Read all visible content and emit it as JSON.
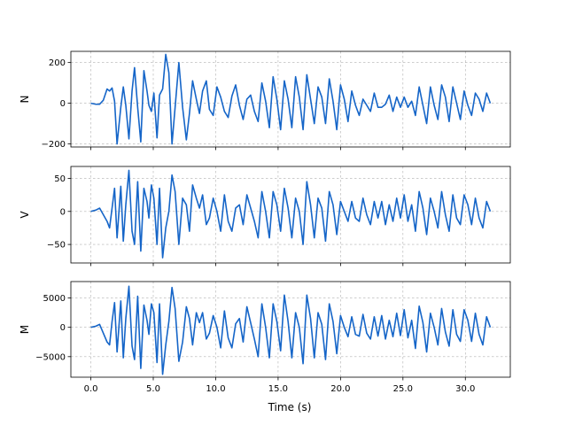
{
  "chart_data": {
    "type": "line",
    "xlabel": "Time (s)",
    "xlim": [
      -1.6,
      33.6
    ],
    "xticks": [
      0,
      5,
      10,
      15,
      20,
      25,
      30
    ],
    "xtick_labels": [
      "0.0",
      "5.0",
      "10.0",
      "15.0",
      "20.0",
      "25.0",
      "30.0"
    ],
    "grid": true,
    "line_color": "#1565c8",
    "panels": [
      {
        "name": "N",
        "ylabel": "N",
        "ylim": [
          -215,
          255
        ],
        "yticks": [
          -200,
          0,
          200
        ],
        "ytick_labels": [
          "−200",
          "0",
          "200"
        ],
        "series": {
          "x": [
            0,
            0.4,
            0.7,
            1.0,
            1.3,
            1.5,
            1.7,
            1.9,
            2.1,
            2.4,
            2.6,
            2.8,
            3.05,
            3.3,
            3.5,
            3.75,
            4.0,
            4.25,
            4.5,
            4.65,
            4.85,
            5.05,
            5.3,
            5.5,
            5.75,
            6.0,
            6.25,
            6.5,
            6.75,
            7.05,
            7.35,
            7.65,
            7.9,
            8.15,
            8.45,
            8.7,
            8.95,
            9.25,
            9.5,
            9.8,
            10.1,
            10.4,
            10.7,
            11.0,
            11.3,
            11.6,
            11.9,
            12.2,
            12.5,
            12.8,
            13.1,
            13.4,
            13.7,
            14.0,
            14.3,
            14.6,
            14.9,
            15.2,
            15.5,
            15.8,
            16.1,
            16.4,
            16.7,
            17.0,
            17.3,
            17.6,
            17.9,
            18.2,
            18.5,
            18.8,
            19.1,
            19.4,
            19.7,
            20.0,
            20.3,
            20.6,
            20.9,
            21.2,
            21.5,
            21.8,
            22.1,
            22.4,
            22.7,
            23.0,
            23.3,
            23.6,
            23.9,
            24.2,
            24.5,
            24.8,
            25.1,
            25.4,
            25.7,
            26.0,
            26.3,
            26.6,
            26.9,
            27.2,
            27.5,
            27.8,
            28.1,
            28.4,
            28.7,
            29.0,
            29.3,
            29.6,
            29.9,
            30.2,
            30.5,
            30.8,
            31.1,
            31.4,
            31.7,
            32.0
          ],
          "y": [
            0,
            -5,
            -5,
            15,
            70,
            60,
            75,
            10,
            -200,
            -20,
            80,
            -10,
            -175,
            60,
            175,
            -20,
            -190,
            160,
            60,
            -10,
            -40,
            50,
            -170,
            40,
            70,
            240,
            150,
            -200,
            -20,
            200,
            -20,
            -180,
            -50,
            110,
            20,
            -50,
            60,
            110,
            -30,
            -60,
            80,
            30,
            -40,
            -70,
            35,
            90,
            -10,
            -80,
            20,
            40,
            -40,
            -90,
            100,
            10,
            -120,
            130,
            20,
            -130,
            110,
            20,
            -120,
            130,
            30,
            -130,
            140,
            20,
            -100,
            80,
            30,
            -100,
            120,
            10,
            -130,
            90,
            20,
            -90,
            60,
            -10,
            -60,
            20,
            -10,
            -40,
            50,
            -20,
            -20,
            -5,
            40,
            -40,
            30,
            -20,
            30,
            -20,
            10,
            -60,
            80,
            -10,
            -100,
            80,
            -10,
            -80,
            90,
            30,
            -90,
            80,
            0,
            -80,
            60,
            -10,
            -60,
            50,
            20,
            -40,
            50,
            0
          ]
        }
      },
      {
        "name": "V",
        "ylabel": "V",
        "ylim": [
          -78,
          68
        ],
        "yticks": [
          -50,
          0,
          50
        ],
        "ytick_labels": [
          "−50",
          "0",
          "50"
        ],
        "series": {
          "x": [
            0,
            0.4,
            0.7,
            1.0,
            1.3,
            1.5,
            1.7,
            1.9,
            2.1,
            2.4,
            2.6,
            2.8,
            3.05,
            3.3,
            3.5,
            3.75,
            4.0,
            4.25,
            4.5,
            4.65,
            4.85,
            5.05,
            5.3,
            5.5,
            5.75,
            6.0,
            6.25,
            6.5,
            6.75,
            7.05,
            7.35,
            7.65,
            7.9,
            8.15,
            8.45,
            8.7,
            8.95,
            9.25,
            9.5,
            9.8,
            10.1,
            10.4,
            10.7,
            11.0,
            11.3,
            11.6,
            11.9,
            12.2,
            12.5,
            12.8,
            13.1,
            13.4,
            13.7,
            14.0,
            14.3,
            14.6,
            14.9,
            15.2,
            15.5,
            15.8,
            16.1,
            16.4,
            16.7,
            17.0,
            17.3,
            17.6,
            17.9,
            18.2,
            18.5,
            18.8,
            19.1,
            19.4,
            19.7,
            20.0,
            20.3,
            20.6,
            20.9,
            21.2,
            21.5,
            21.8,
            22.1,
            22.4,
            22.7,
            23.0,
            23.3,
            23.6,
            23.9,
            24.2,
            24.5,
            24.8,
            25.1,
            25.4,
            25.7,
            26.0,
            26.3,
            26.6,
            26.9,
            27.2,
            27.5,
            27.8,
            28.1,
            28.4,
            28.7,
            29.0,
            29.3,
            29.6,
            29.9,
            30.2,
            30.5,
            30.8,
            31.1,
            31.4,
            31.7,
            32.0
          ],
          "y": [
            0,
            2,
            5,
            -5,
            -15,
            -25,
            5,
            35,
            -40,
            38,
            -45,
            10,
            62,
            -30,
            -50,
            45,
            -60,
            35,
            15,
            -10,
            40,
            20,
            -50,
            35,
            -70,
            -25,
            0,
            55,
            30,
            -50,
            20,
            10,
            -30,
            40,
            20,
            5,
            25,
            -20,
            -10,
            20,
            0,
            -30,
            25,
            -15,
            -30,
            5,
            10,
            -20,
            25,
            5,
            -15,
            -40,
            30,
            0,
            -40,
            30,
            10,
            -30,
            35,
            5,
            -40,
            20,
            0,
            -50,
            45,
            10,
            -40,
            20,
            5,
            -45,
            30,
            10,
            -35,
            15,
            0,
            -15,
            15,
            -10,
            -15,
            20,
            -5,
            -20,
            15,
            -10,
            15,
            -20,
            10,
            -15,
            20,
            -10,
            25,
            -15,
            10,
            -30,
            30,
            5,
            -35,
            20,
            0,
            -25,
            30,
            -5,
            -30,
            25,
            -10,
            -20,
            25,
            10,
            -20,
            20,
            -10,
            -25,
            15,
            0
          ]
        }
      },
      {
        "name": "M",
        "ylabel": "M",
        "ylim": [
          -8500,
          7800
        ],
        "yticks": [
          -5000,
          0,
          5000
        ],
        "ytick_labels": [
          "−5000",
          "0",
          "5000"
        ],
        "series": {
          "x": [
            0,
            0.4,
            0.7,
            1.0,
            1.3,
            1.5,
            1.7,
            1.9,
            2.1,
            2.4,
            2.6,
            2.8,
            3.05,
            3.3,
            3.5,
            3.75,
            4.0,
            4.25,
            4.5,
            4.65,
            4.85,
            5.05,
            5.3,
            5.5,
            5.75,
            6.0,
            6.25,
            6.5,
            6.75,
            7.05,
            7.35,
            7.65,
            7.9,
            8.15,
            8.45,
            8.7,
            8.95,
            9.25,
            9.5,
            9.8,
            10.1,
            10.4,
            10.7,
            11.0,
            11.3,
            11.6,
            11.9,
            12.2,
            12.5,
            12.8,
            13.1,
            13.4,
            13.7,
            14.0,
            14.3,
            14.6,
            14.9,
            15.2,
            15.5,
            15.8,
            16.1,
            16.4,
            16.7,
            17.0,
            17.3,
            17.6,
            17.9,
            18.2,
            18.5,
            18.8,
            19.1,
            19.4,
            19.7,
            20.0,
            20.3,
            20.6,
            20.9,
            21.2,
            21.5,
            21.8,
            22.1,
            22.4,
            22.7,
            23.0,
            23.3,
            23.6,
            23.9,
            24.2,
            24.5,
            24.8,
            25.1,
            25.4,
            25.7,
            26.0,
            26.3,
            26.6,
            26.9,
            27.2,
            27.5,
            27.8,
            28.1,
            28.4,
            28.7,
            29.0,
            29.3,
            29.6,
            29.9,
            30.2,
            30.5,
            30.8,
            31.1,
            31.4,
            31.7,
            32.0
          ],
          "y": [
            0,
            200,
            500,
            -1000,
            -2500,
            -3000,
            1000,
            4200,
            -4200,
            4500,
            -5200,
            1500,
            7000,
            -3200,
            -5500,
            5300,
            -7000,
            3800,
            1200,
            -1200,
            4000,
            2500,
            -6000,
            4000,
            -8000,
            -3000,
            1000,
            6800,
            3200,
            -5800,
            -2500,
            3500,
            1500,
            -3000,
            2500,
            800,
            2500,
            -2000,
            -1000,
            2000,
            0,
            -3500,
            2800,
            -1800,
            -3500,
            600,
            1500,
            -2500,
            3500,
            800,
            -2000,
            -5000,
            4000,
            0,
            -5200,
            4000,
            1000,
            -4000,
            5500,
            1000,
            -5200,
            2500,
            0,
            -6200,
            5500,
            1500,
            -5200,
            2500,
            500,
            -5500,
            4000,
            1000,
            -4500,
            2000,
            0,
            -1600,
            1800,
            -1200,
            -1500,
            2200,
            -1000,
            -2000,
            1800,
            -1500,
            2000,
            -2000,
            1200,
            -1600,
            2400,
            -1400,
            3000,
            -1800,
            1200,
            -3600,
            3600,
            800,
            -4200,
            2400,
            0,
            -3000,
            3200,
            -800,
            -3200,
            3000,
            -1200,
            -2400,
            3000,
            1200,
            -2400,
            2400,
            -1200,
            -3000,
            1800,
            0
          ]
        }
      }
    ]
  }
}
